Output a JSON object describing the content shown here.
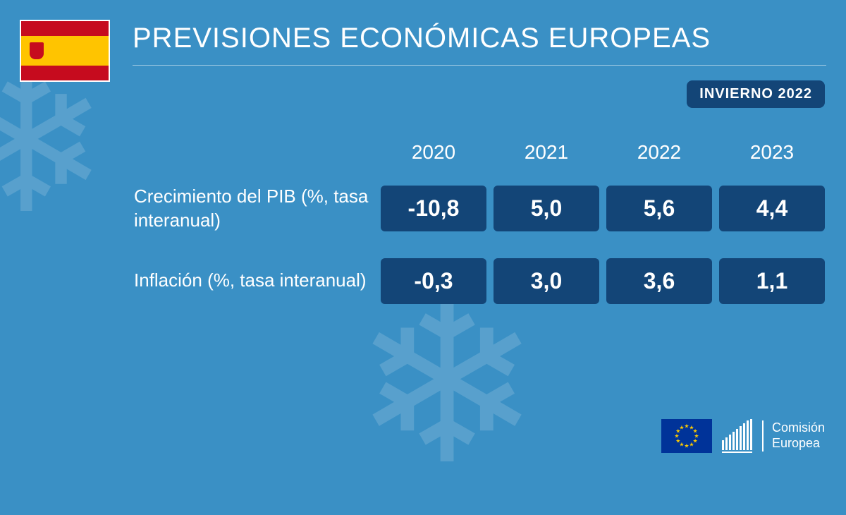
{
  "title": "PREVISIONES ECONÓMICAS EUROPEAS",
  "season": "INVIERNO 2022",
  "country": "España",
  "flag": {
    "top_color": "#c60b1e",
    "middle_color": "#ffc400",
    "bottom_color": "#c60b1e"
  },
  "colors": {
    "background": "#3a90c5",
    "cell_bg": "#134577",
    "text": "#ffffff",
    "eu_blue": "#003399",
    "eu_gold": "#ffcc00"
  },
  "table": {
    "years": [
      "2020",
      "2021",
      "2022",
      "2023"
    ],
    "rows": [
      {
        "label": "Crecimiento del PIB (%, tasa interanual)",
        "values": [
          "-10,8",
          "5,0",
          "5,6",
          "4,4"
        ]
      },
      {
        "label": "Inflación (%, tasa interanual)",
        "values": [
          "-0,3",
          "3,0",
          "3,6",
          "1,1"
        ]
      }
    ]
  },
  "footer": {
    "line1": "Comisión",
    "line2": "Europea"
  }
}
